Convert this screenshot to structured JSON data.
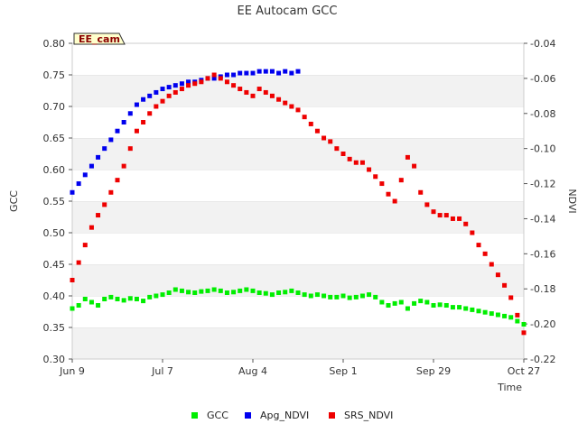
{
  "chart_data": {
    "type": "scatter",
    "title": "EE Autocam GCC",
    "xlabel": "Time",
    "ylabel": "GCC",
    "y2label": "NDVI",
    "tag": "EE_cam",
    "x_ticks": [
      "Jun 9",
      "Jul 7",
      "Aug 4",
      "Sep 1",
      "Sep 29",
      "Oct 27"
    ],
    "x_tick_days": [
      0,
      28,
      56,
      84,
      112,
      140
    ],
    "xlim_days": [
      0,
      140
    ],
    "ylim": [
      0.3,
      0.8
    ],
    "y_ticks": [
      "0.30",
      "0.35",
      "0.40",
      "0.45",
      "0.50",
      "0.55",
      "0.60",
      "0.65",
      "0.70",
      "0.75",
      "0.80"
    ],
    "y2lim": [
      -0.22,
      -0.04
    ],
    "y2_ticks": [
      "-0.22",
      "-0.20",
      "-0.18",
      "-0.16",
      "-0.14",
      "-0.12",
      "-0.10",
      "-0.08",
      "-0.06",
      "-0.04"
    ],
    "grid": "horizontal bands",
    "legend_placement": "bottom",
    "series": [
      {
        "name": "GCC",
        "axis": "left",
        "color": "#00ee00",
        "points": [
          [
            0,
            0.38
          ],
          [
            2,
            0.385
          ],
          [
            4,
            0.395
          ],
          [
            6,
            0.39
          ],
          [
            8,
            0.385
          ],
          [
            10,
            0.395
          ],
          [
            12,
            0.398
          ],
          [
            14,
            0.395
          ],
          [
            16,
            0.393
          ],
          [
            18,
            0.396
          ],
          [
            20,
            0.395
          ],
          [
            22,
            0.392
          ],
          [
            24,
            0.398
          ],
          [
            26,
            0.4
          ],
          [
            28,
            0.402
          ],
          [
            30,
            0.405
          ],
          [
            32,
            0.41
          ],
          [
            34,
            0.408
          ],
          [
            36,
            0.406
          ],
          [
            38,
            0.405
          ],
          [
            40,
            0.407
          ],
          [
            42,
            0.408
          ],
          [
            44,
            0.41
          ],
          [
            46,
            0.408
          ],
          [
            48,
            0.405
          ],
          [
            50,
            0.406
          ],
          [
            52,
            0.408
          ],
          [
            54,
            0.41
          ],
          [
            56,
            0.408
          ],
          [
            58,
            0.405
          ],
          [
            60,
            0.404
          ],
          [
            62,
            0.402
          ],
          [
            64,
            0.405
          ],
          [
            66,
            0.406
          ],
          [
            68,
            0.408
          ],
          [
            70,
            0.405
          ],
          [
            72,
            0.402
          ],
          [
            74,
            0.4
          ],
          [
            76,
            0.402
          ],
          [
            78,
            0.4
          ],
          [
            80,
            0.398
          ],
          [
            82,
            0.398
          ],
          [
            84,
            0.4
          ],
          [
            86,
            0.397
          ],
          [
            88,
            0.398
          ],
          [
            90,
            0.4
          ],
          [
            92,
            0.402
          ],
          [
            94,
            0.398
          ],
          [
            96,
            0.39
          ],
          [
            98,
            0.385
          ],
          [
            100,
            0.388
          ],
          [
            102,
            0.39
          ],
          [
            104,
            0.38
          ],
          [
            106,
            0.388
          ],
          [
            108,
            0.392
          ],
          [
            110,
            0.39
          ],
          [
            112,
            0.385
          ],
          [
            114,
            0.386
          ],
          [
            116,
            0.385
          ],
          [
            118,
            0.382
          ],
          [
            120,
            0.382
          ],
          [
            122,
            0.38
          ],
          [
            124,
            0.378
          ],
          [
            126,
            0.376
          ],
          [
            128,
            0.374
          ],
          [
            130,
            0.372
          ],
          [
            132,
            0.37
          ],
          [
            134,
            0.368
          ],
          [
            136,
            0.366
          ],
          [
            138,
            0.36
          ],
          [
            140,
            0.355
          ]
        ]
      },
      {
        "name": "Apg_NDVI",
        "axis": "right",
        "color": "#0000ee",
        "points": [
          [
            0,
            -0.125
          ],
          [
            2,
            -0.12
          ],
          [
            4,
            -0.115
          ],
          [
            6,
            -0.11
          ],
          [
            8,
            -0.105
          ],
          [
            10,
            -0.1
          ],
          [
            12,
            -0.095
          ],
          [
            14,
            -0.09
          ],
          [
            16,
            -0.085
          ],
          [
            18,
            -0.08
          ],
          [
            20,
            -0.075
          ],
          [
            22,
            -0.072
          ],
          [
            24,
            -0.07
          ],
          [
            26,
            -0.068
          ],
          [
            28,
            -0.066
          ],
          [
            30,
            -0.065
          ],
          [
            32,
            -0.064
          ],
          [
            34,
            -0.063
          ],
          [
            36,
            -0.062
          ],
          [
            38,
            -0.062
          ],
          [
            40,
            -0.061
          ],
          [
            42,
            -0.06
          ],
          [
            44,
            -0.06
          ],
          [
            46,
            -0.059
          ],
          [
            48,
            -0.058
          ],
          [
            50,
            -0.058
          ],
          [
            52,
            -0.057
          ],
          [
            54,
            -0.057
          ],
          [
            56,
            -0.057
          ],
          [
            58,
            -0.056
          ],
          [
            60,
            -0.056
          ],
          [
            62,
            -0.056
          ],
          [
            64,
            -0.057
          ],
          [
            66,
            -0.056
          ],
          [
            68,
            -0.057
          ],
          [
            70,
            -0.056
          ]
        ]
      },
      {
        "name": "SRS_NDVI",
        "axis": "right",
        "color": "#ee0000",
        "points": [
          [
            0,
            -0.175
          ],
          [
            2,
            -0.165
          ],
          [
            4,
            -0.155
          ],
          [
            6,
            -0.145
          ],
          [
            8,
            -0.138
          ],
          [
            10,
            -0.132
          ],
          [
            12,
            -0.125
          ],
          [
            14,
            -0.118
          ],
          [
            16,
            -0.11
          ],
          [
            18,
            -0.1
          ],
          [
            20,
            -0.09
          ],
          [
            22,
            -0.085
          ],
          [
            24,
            -0.08
          ],
          [
            26,
            -0.076
          ],
          [
            28,
            -0.073
          ],
          [
            30,
            -0.07
          ],
          [
            32,
            -0.068
          ],
          [
            34,
            -0.066
          ],
          [
            36,
            -0.064
          ],
          [
            38,
            -0.063
          ],
          [
            40,
            -0.062
          ],
          [
            42,
            -0.06
          ],
          [
            44,
            -0.058
          ],
          [
            46,
            -0.06
          ],
          [
            48,
            -0.062
          ],
          [
            50,
            -0.064
          ],
          [
            52,
            -0.066
          ],
          [
            54,
            -0.068
          ],
          [
            56,
            -0.07
          ],
          [
            58,
            -0.066
          ],
          [
            60,
            -0.068
          ],
          [
            62,
            -0.07
          ],
          [
            64,
            -0.072
          ],
          [
            66,
            -0.074
          ],
          [
            68,
            -0.076
          ],
          [
            70,
            -0.078
          ],
          [
            72,
            -0.082
          ],
          [
            74,
            -0.086
          ],
          [
            76,
            -0.09
          ],
          [
            78,
            -0.094
          ],
          [
            80,
            -0.096
          ],
          [
            82,
            -0.1
          ],
          [
            84,
            -0.103
          ],
          [
            86,
            -0.106
          ],
          [
            88,
            -0.108
          ],
          [
            90,
            -0.108
          ],
          [
            92,
            -0.112
          ],
          [
            94,
            -0.116
          ],
          [
            96,
            -0.12
          ],
          [
            98,
            -0.126
          ],
          [
            100,
            -0.13
          ],
          [
            102,
            -0.118
          ],
          [
            104,
            -0.105
          ],
          [
            106,
            -0.11
          ],
          [
            108,
            -0.125
          ],
          [
            110,
            -0.132
          ],
          [
            112,
            -0.136
          ],
          [
            114,
            -0.138
          ],
          [
            116,
            -0.138
          ],
          [
            118,
            -0.14
          ],
          [
            120,
            -0.14
          ],
          [
            122,
            -0.143
          ],
          [
            124,
            -0.148
          ],
          [
            126,
            -0.155
          ],
          [
            128,
            -0.16
          ],
          [
            130,
            -0.166
          ],
          [
            132,
            -0.172
          ],
          [
            134,
            -0.178
          ],
          [
            136,
            -0.185
          ],
          [
            138,
            -0.195
          ],
          [
            140,
            -0.205
          ]
        ]
      }
    ]
  }
}
